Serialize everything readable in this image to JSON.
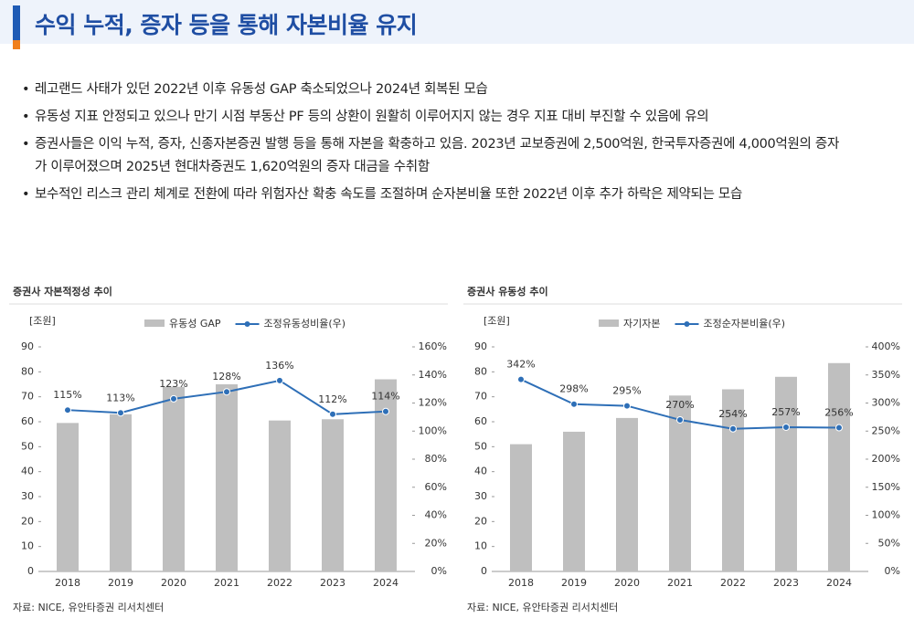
{
  "header": {
    "title": "수익 누적, 증자 등을 통해 자본비율 유지"
  },
  "bullets": [
    "레고랜드 사태가 있던 2022년 이후 유동성 GAP 축소되었으나 2024년 회복된 모습",
    "유동성 지표 안정되고 있으나 만기 시점 부동산 PF 등의 상환이 원활히 이루어지지 않는 경우 지표 대비 부진할 수 있음에 유의",
    "증권사들은 이익 누적, 증자, 신종자본증권 발행 등을 통해 자본을 확충하고 있음. 2023년 교보증권에 2,500억원, 한국투자증권에 4,000억원의 증자가 이루어졌으며 2025년 현대차증권도 1,620억원의 증자 대금을 수취함",
    "보수적인 리스크 관리 체계로 전환에 따라 위험자산 확충 속도를 조절하며 순자본비율 또한 2022년 이후 추가 하락은 제약되는 모습"
  ],
  "chart_data": [
    {
      "type": "bar-line",
      "title": "증권사 자본적정성 추이",
      "unit_label": "[조원]",
      "source": "자료: NICE, 유안타증권 리서치센터",
      "categories": [
        "2018",
        "2019",
        "2020",
        "2021",
        "2022",
        "2023",
        "2024"
      ],
      "series": [
        {
          "name": "유동성 GAP",
          "color": "#bfbfbf",
          "type": "bar",
          "values": [
            59.5,
            63,
            74,
            75,
            60.5,
            61,
            77
          ]
        },
        {
          "name": "조정유동성비율(우)",
          "color": "#2e6fb7",
          "type": "line",
          "axis": "y2",
          "values": [
            115,
            113,
            123,
            128,
            136,
            112,
            114
          ],
          "value_labels": [
            "115%",
            "113%",
            "123%",
            "128%",
            "136%",
            "112%",
            "114%"
          ]
        }
      ],
      "ylim": [
        0,
        90
      ],
      "yticks": [
        0,
        10,
        20,
        30,
        40,
        50,
        60,
        70,
        80,
        90
      ],
      "y2lim": [
        0,
        160
      ],
      "y2ticks": [
        {
          "value": 0,
          "label": "0%"
        },
        {
          "value": 20,
          "label": "20%"
        },
        {
          "value": 40,
          "label": "40%"
        },
        {
          "value": 60,
          "label": "60%"
        },
        {
          "value": 80,
          "label": "80%"
        },
        {
          "value": 100,
          "label": "100%"
        },
        {
          "value": 120,
          "label": "120%"
        },
        {
          "value": 140,
          "label": "140%"
        },
        {
          "value": 160,
          "label": "160%"
        }
      ]
    },
    {
      "type": "bar-line",
      "title": "증권사 유동성 추이",
      "unit_label": "[조원]",
      "source": "자료: NICE, 유안타증권 리서치센터",
      "categories": [
        "2018",
        "2019",
        "2020",
        "2021",
        "2022",
        "2023",
        "2024"
      ],
      "series": [
        {
          "name": "자기자본",
          "color": "#bfbfbf",
          "type": "bar",
          "values": [
            51,
            56,
            61.5,
            70.5,
            73,
            78,
            83.5
          ]
        },
        {
          "name": "조정순자본비율(우)",
          "color": "#2e6fb7",
          "type": "line",
          "axis": "y2",
          "values": [
            342,
            298,
            295,
            270,
            254,
            257,
            256
          ],
          "value_labels": [
            "342%",
            "298%",
            "295%",
            "270%",
            "254%",
            "257%",
            "256%"
          ]
        }
      ],
      "ylim": [
        0,
        90
      ],
      "yticks": [
        0,
        10,
        20,
        30,
        40,
        50,
        60,
        70,
        80,
        90
      ],
      "y2lim": [
        0,
        400
      ],
      "y2ticks": [
        {
          "value": 0,
          "label": "0%"
        },
        {
          "value": 50,
          "label": "50%"
        },
        {
          "value": 100,
          "label": "100%"
        },
        {
          "value": 150,
          "label": "150%"
        },
        {
          "value": 200,
          "label": "200%"
        },
        {
          "value": 250,
          "label": "250%"
        },
        {
          "value": 300,
          "label": "300%"
        },
        {
          "value": 350,
          "label": "350%"
        },
        {
          "value": 400,
          "label": "400%"
        }
      ]
    }
  ]
}
